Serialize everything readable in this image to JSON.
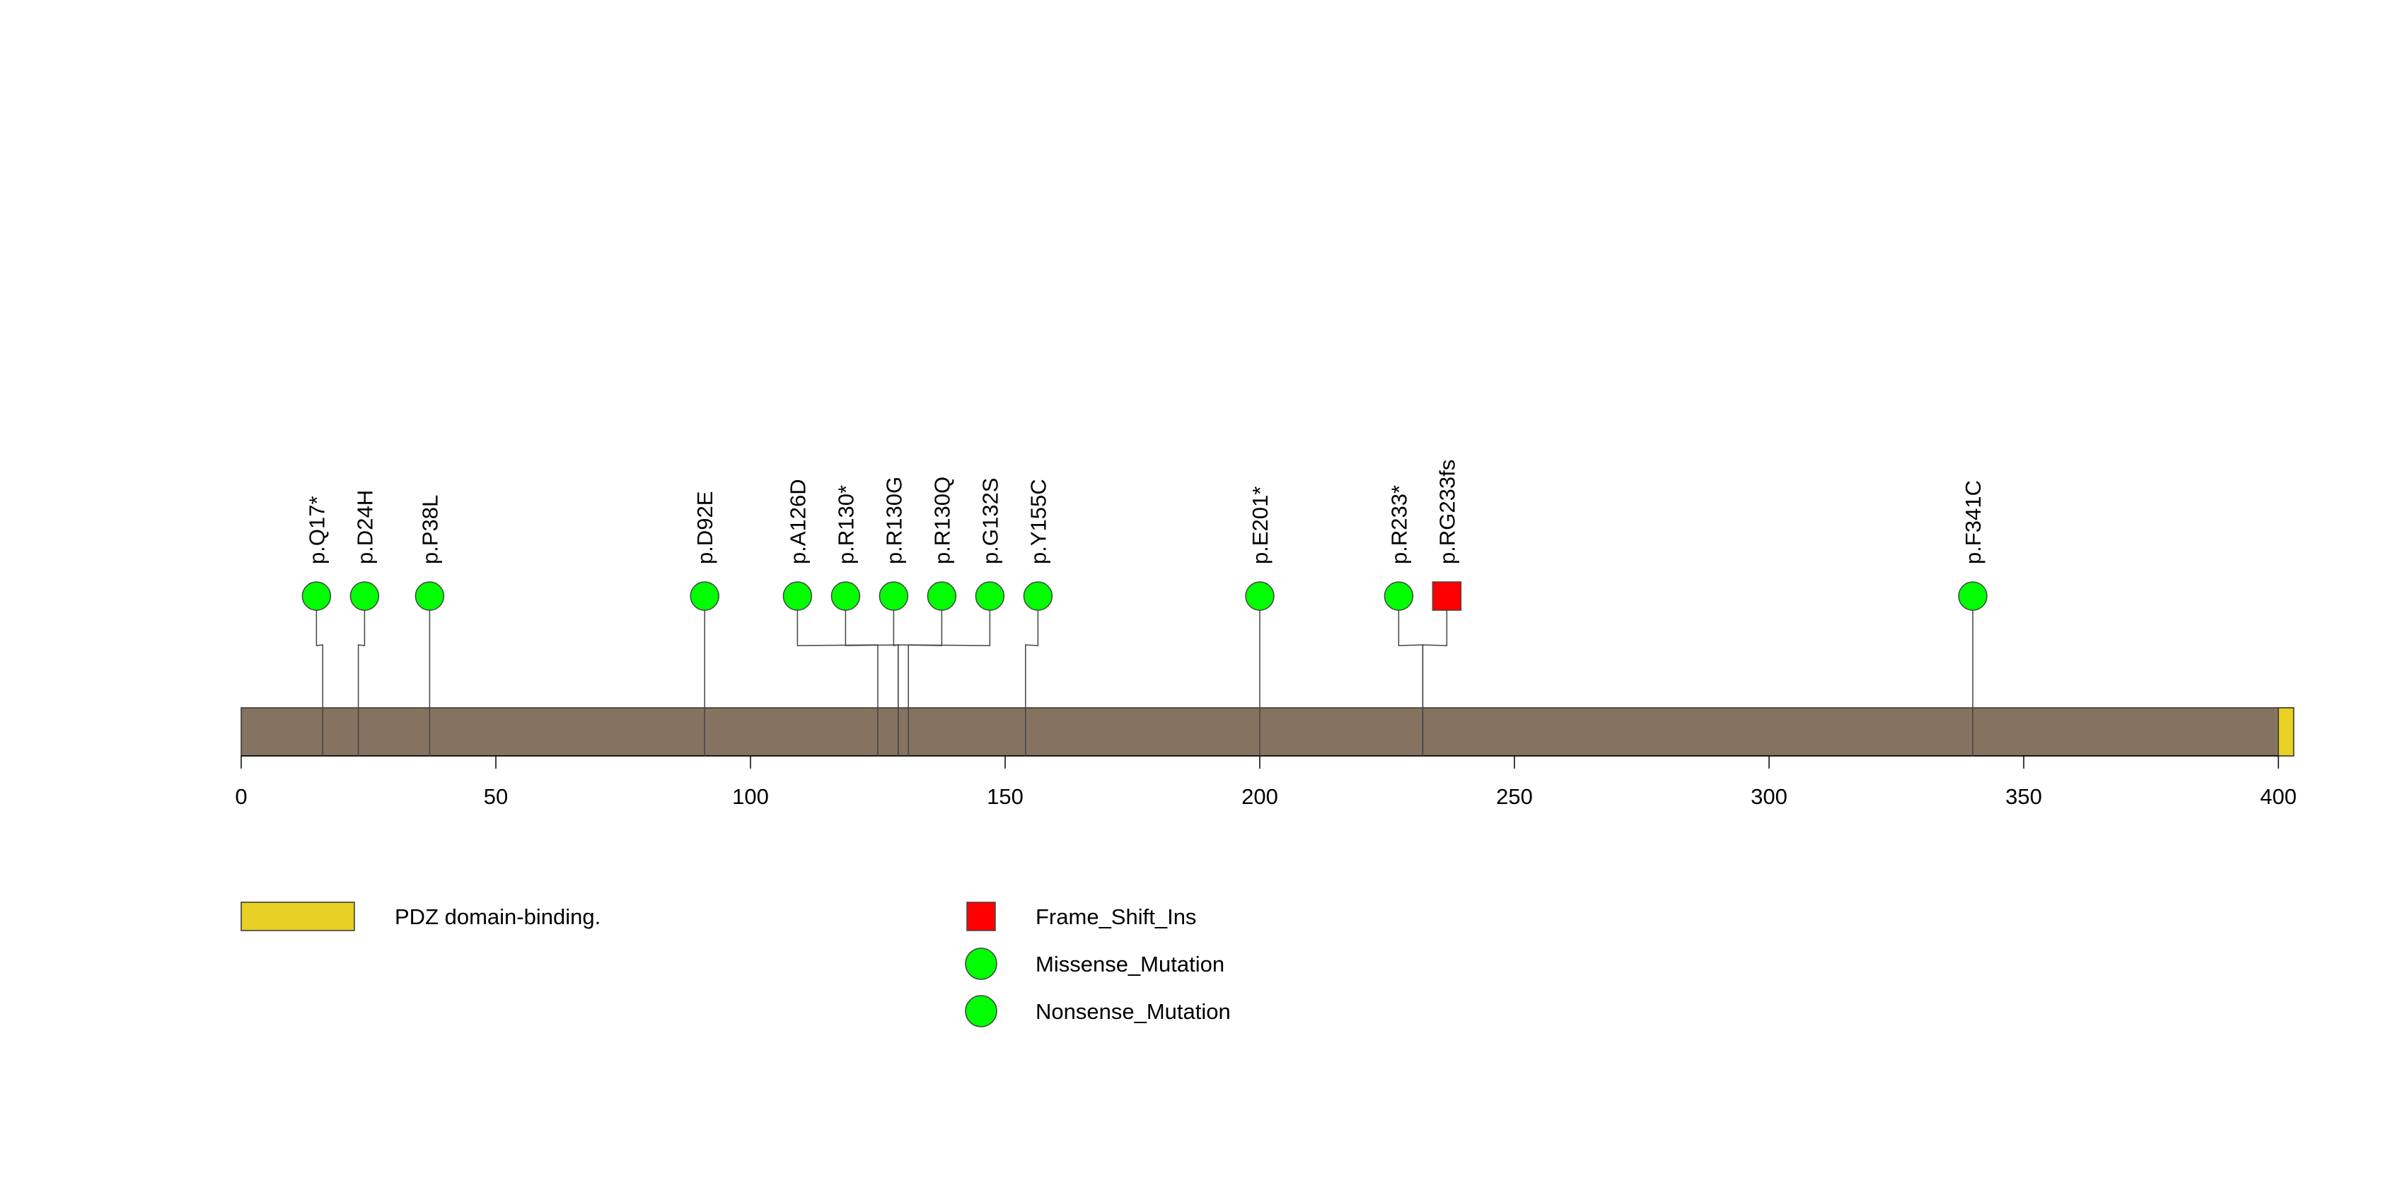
{
  "chart_data": {
    "type": "lollipop",
    "protein_length": 403,
    "x_ticks": [
      0,
      50,
      100,
      150,
      200,
      250,
      300,
      350,
      400
    ],
    "backbone_color": "#857361",
    "domains": [
      {
        "name": "PDZ domain-binding.",
        "start": 400,
        "end": 403,
        "color": "#E8D025"
      }
    ],
    "mutations": [
      {
        "label": "p.Q17*",
        "position": 16,
        "type": "Nonsense_Mutation"
      },
      {
        "label": "p.D24H",
        "position": 23,
        "type": "Missense_Mutation"
      },
      {
        "label": "p.P38L",
        "position": 37,
        "type": "Missense_Mutation"
      },
      {
        "label": "p.D92E",
        "position": 91,
        "type": "Missense_Mutation"
      },
      {
        "label": "p.A126D",
        "position": 125,
        "type": "Missense_Mutation"
      },
      {
        "label": "p.R130*",
        "position": 129,
        "type": "Nonsense_Mutation"
      },
      {
        "label": "p.R130G",
        "position": 129,
        "type": "Missense_Mutation"
      },
      {
        "label": "p.R130Q",
        "position": 129,
        "type": "Missense_Mutation"
      },
      {
        "label": "p.G132S",
        "position": 131,
        "type": "Missense_Mutation"
      },
      {
        "label": "p.Y155C",
        "position": 154,
        "type": "Missense_Mutation"
      },
      {
        "label": "p.E201*",
        "position": 200,
        "type": "Nonsense_Mutation"
      },
      {
        "label": "p.R233*",
        "position": 232,
        "type": "Nonsense_Mutation"
      },
      {
        "label": "p.RG233fs",
        "position": 232,
        "type": "Frame_Shift_Ins"
      },
      {
        "label": "p.F341C",
        "position": 340,
        "type": "Missense_Mutation"
      }
    ],
    "legend": {
      "domains": [
        {
          "label": "PDZ domain-binding.",
          "color": "#E8D025"
        }
      ],
      "mutation_types": [
        {
          "label": "Frame_Shift_Ins",
          "shape": "square",
          "color": "#FF0000"
        },
        {
          "label": "Missense_Mutation",
          "shape": "circle",
          "color": "#00FF00"
        },
        {
          "label": "Nonsense_Mutation",
          "shape": "circle",
          "color": "#00FF00"
        }
      ]
    }
  }
}
